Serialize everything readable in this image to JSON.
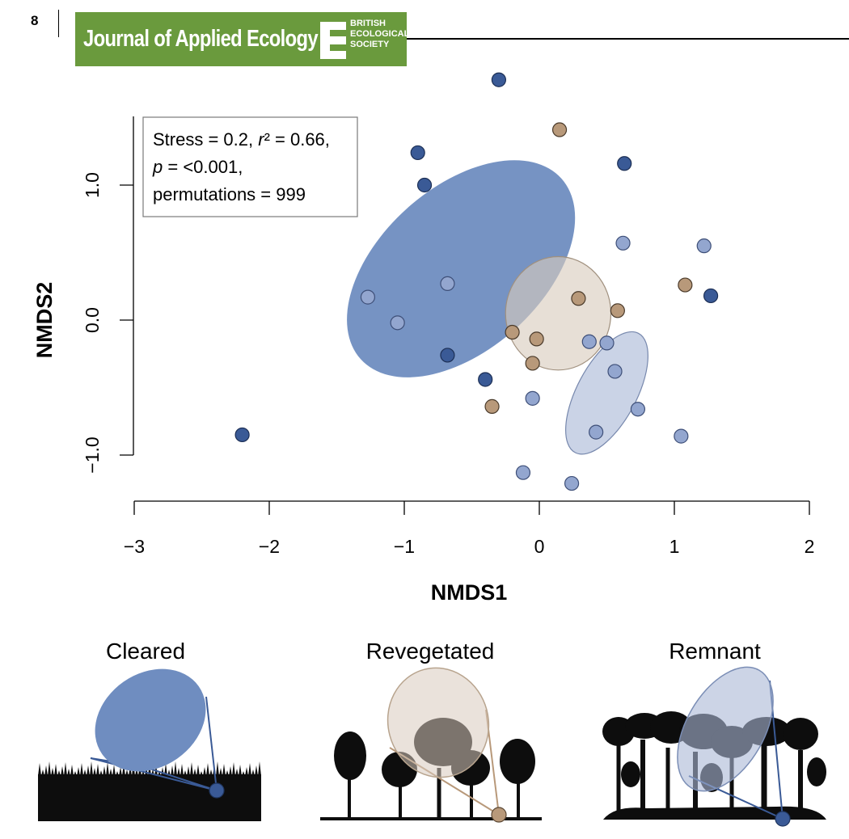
{
  "header": {
    "page_number": "8",
    "journal_title": "Journal of Applied Ecology",
    "society_lines": [
      "BRITISH",
      "ECOLOGICAL",
      "SOCIETY"
    ]
  },
  "colors": {
    "cleared": "#6f8dc0",
    "cleared_point": "#3a5a96",
    "revegetated": "#d8cbbd",
    "revegetated_point": "#b8997a",
    "remnant": "#aab8d6",
    "remnant_point": "#93a6cf",
    "header_green": "#6a9a3d",
    "silhouette": "#0d0d0d"
  },
  "stats": {
    "line1_prefix": "Stress = 0.2,",
    "line1_r": "r",
    "line1_suffix": "² = 0.66,",
    "line2_p": "p",
    "line2_suffix": " = <0.001,",
    "line3": "permutations = 999"
  },
  "chart_data": {
    "type": "scatter",
    "title": "",
    "xlabel": "NMDS1",
    "ylabel": "NMDS2",
    "xlim": [
      -3,
      2
    ],
    "ylim": [
      -1.3,
      1.5
    ],
    "xticks": [
      -3,
      -2,
      -1,
      0,
      1,
      2
    ],
    "xtick_labels": [
      "−3",
      "−2",
      "−1",
      "0",
      "1",
      "2"
    ],
    "yticks": [
      -1.0,
      0.0,
      1.0
    ],
    "ytick_labels": [
      "−1.0",
      "0.0",
      "1.0"
    ],
    "grid": false,
    "series": [
      {
        "name": "Cleared",
        "color": "#3a5a96",
        "points": [
          [
            -0.3,
            1.78
          ],
          [
            -0.9,
            1.24
          ],
          [
            -0.85,
            1.0
          ],
          [
            0.63,
            1.16
          ],
          [
            1.27,
            0.18
          ],
          [
            -0.68,
            -0.26
          ],
          [
            -0.4,
            -0.44
          ],
          [
            -2.2,
            -0.85
          ]
        ],
        "ellipse": {
          "cx": -0.58,
          "cy": 0.38,
          "rx": 1.0,
          "ry": 0.6,
          "angle_deg": 42
        }
      },
      {
        "name": "Revegetated",
        "color": "#b8997a",
        "points": [
          [
            0.15,
            1.41
          ],
          [
            1.08,
            0.26
          ],
          [
            0.29,
            0.16
          ],
          [
            0.58,
            0.07
          ],
          [
            -0.2,
            -0.09
          ],
          [
            -0.02,
            -0.14
          ],
          [
            -0.05,
            -0.32
          ],
          [
            -0.35,
            -0.64
          ]
        ],
        "ellipse": {
          "cx": 0.14,
          "cy": 0.05,
          "rx": 0.39,
          "ry": 0.42,
          "angle_deg": 0
        }
      },
      {
        "name": "Remnant",
        "color": "#93a6cf",
        "points": [
          [
            0.62,
            0.57
          ],
          [
            1.22,
            0.55
          ],
          [
            -0.68,
            0.27
          ],
          [
            -1.27,
            0.17
          ],
          [
            -1.05,
            -0.02
          ],
          [
            0.37,
            -0.16
          ],
          [
            0.5,
            -0.17
          ],
          [
            0.56,
            -0.38
          ],
          [
            -0.05,
            -0.58
          ],
          [
            0.73,
            -0.66
          ],
          [
            0.42,
            -0.83
          ],
          [
            1.05,
            -0.86
          ],
          [
            -0.12,
            -1.13
          ],
          [
            0.24,
            -1.21
          ]
        ],
        "ellipse": {
          "cx": 0.5,
          "cy": -0.54,
          "rx": 0.5,
          "ry": 0.22,
          "angle_deg": 62
        }
      }
    ]
  },
  "scenes": [
    {
      "title": "Cleared"
    },
    {
      "title": "Revegetated"
    },
    {
      "title": "Remnant"
    }
  ]
}
